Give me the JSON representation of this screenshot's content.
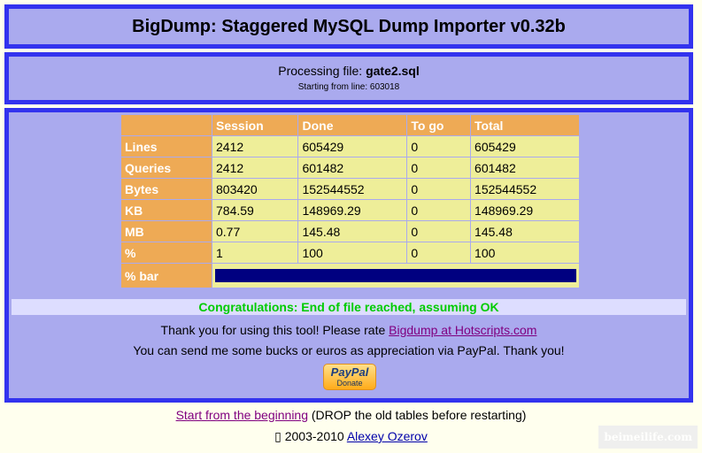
{
  "header": {
    "title": "BigDump: Staggered MySQL Dump Importer v0.32b"
  },
  "processing": {
    "label": "Processing file: ",
    "file": "gate2.sql",
    "start_line": "Starting from line: 603018"
  },
  "table": {
    "columns": [
      "",
      "Session",
      "Done",
      "To go",
      "Total"
    ],
    "rows": [
      {
        "label": "Lines",
        "values": [
          "2412",
          "605429",
          "0",
          "605429"
        ]
      },
      {
        "label": "Queries",
        "values": [
          "2412",
          "601482",
          "0",
          "601482"
        ]
      },
      {
        "label": "Bytes",
        "values": [
          "803420",
          "152544552",
          "0",
          "152544552"
        ]
      },
      {
        "label": "KB",
        "values": [
          "784.59",
          "148969.29",
          "0",
          "148969.29"
        ]
      },
      {
        "label": "MB",
        "values": [
          "0.77",
          "145.48",
          "0",
          "145.48"
        ]
      },
      {
        "label": "%",
        "values": [
          "1",
          "100",
          "0",
          "100"
        ]
      }
    ],
    "bar_label": "% bar",
    "bar_percent": 100,
    "bar_color": "#000080"
  },
  "messages": {
    "congrats": "Congratulations: End of file reached, assuming OK",
    "thanks": "Thank you for using this tool! Please rate ",
    "rate_link": "Bigdump at Hotscripts.com",
    "paypal_text": "You can send me some bucks or euros as appreciation via PayPal. Thank you!"
  },
  "paypal": {
    "brand": "PayPal",
    "label": "Donate"
  },
  "footer": {
    "restart_link": "Start from the beginning",
    "restart_note": " (DROP the old tables before restarting)",
    "copyright": "▯ 2003-2010 ",
    "author_link": "Alexey Ozerov"
  },
  "watermark": "beimeilife.com"
}
